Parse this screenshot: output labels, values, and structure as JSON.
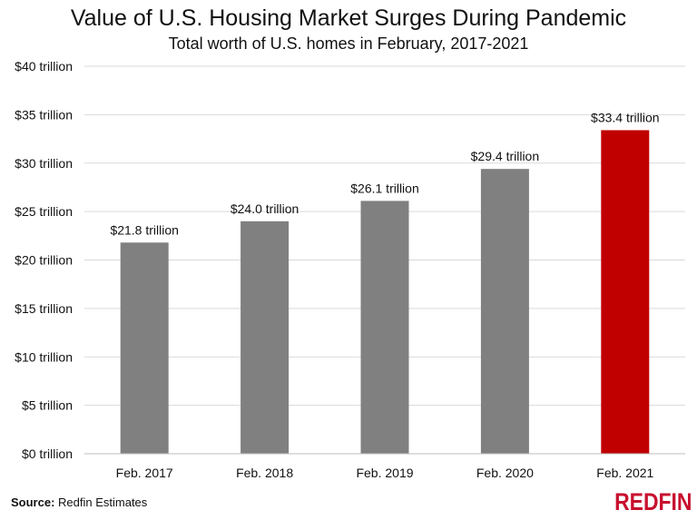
{
  "chart_data": {
    "type": "bar",
    "title": "Value of U.S. Housing Market Surges During Pandemic",
    "subtitle": "Total worth of U.S. homes in February, 2017-2021",
    "categories": [
      "Feb. 2017",
      "Feb. 2018",
      "Feb. 2019",
      "Feb. 2020",
      "Feb. 2021"
    ],
    "values": [
      21.8,
      24.0,
      26.1,
      29.4,
      33.4
    ],
    "data_labels": [
      "$21.8 trillion",
      "$24.0 trillion",
      "$26.1 trillion",
      "$29.4 trillion",
      "$33.4 trillion"
    ],
    "colors": [
      "#808080",
      "#808080",
      "#808080",
      "#808080",
      "#c00000"
    ],
    "ylim": [
      0,
      40
    ],
    "yticks": [
      0,
      5,
      10,
      15,
      20,
      25,
      30,
      35,
      40
    ],
    "ytick_labels": [
      "$0 trillion",
      "$5 trillion",
      "$10 trillion",
      "$15 trillion",
      "$20 trillion",
      "$25 trillion",
      "$30 trillion",
      "$35 trillion",
      "$40 trillion"
    ],
    "grid": true,
    "xlabel": "",
    "ylabel": ""
  },
  "footer": {
    "source_label": "Source:",
    "source_text": " Redfin Estimates",
    "logo": "REDFIN"
  }
}
